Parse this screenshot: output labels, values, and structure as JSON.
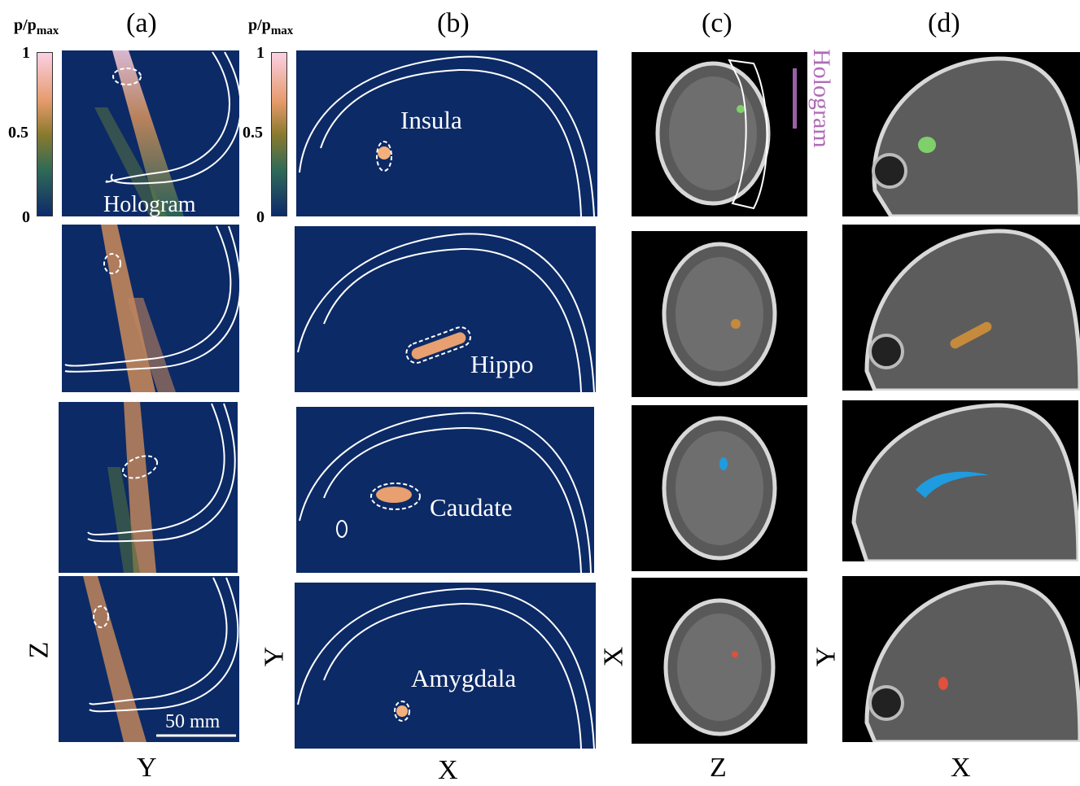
{
  "panels": {
    "a": "(a)",
    "b": "(b)",
    "c": "(c)",
    "d": "(d)"
  },
  "colorbar": {
    "title_main": "p/p",
    "title_sub": "max",
    "ticks": [
      "1",
      "0.5",
      "0"
    ],
    "colors": [
      "#fbd0e4",
      "#e59a6a",
      "#8a7a2e",
      "#2f6a57",
      "#0e2a6a"
    ]
  },
  "axes": {
    "a_x": "Y",
    "a_y": "Z",
    "b_x": "X",
    "b_y": "Y",
    "c_x": "Z",
    "c_y": "X",
    "d_x": "X",
    "d_y": "Y"
  },
  "labels": {
    "hologram_a": "Hologram",
    "hologram_c": "Hologram",
    "scalebar": "50 mm",
    "regions": [
      "Insula",
      "Hippo",
      "Caudate",
      "Amygdala"
    ]
  },
  "region_colors": [
    "#7fd06a",
    "#c58a3c",
    "#1f9be0",
    "#e0503c"
  ],
  "field_background": "#0c2a66",
  "hologram_bar_color": "#9b5fa8"
}
